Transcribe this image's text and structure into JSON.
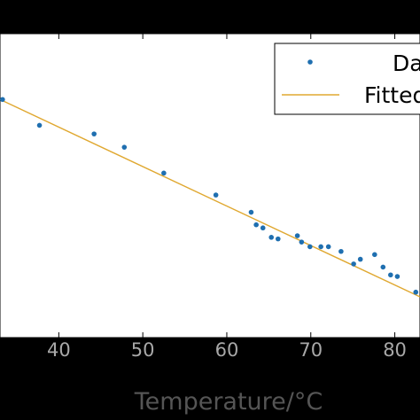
{
  "chart_data": {
    "type": "scatter",
    "title": "",
    "xlabel": "Temperature/°C",
    "ylabel": "",
    "xlim": [
      33,
      83
    ],
    "x_ticks": [
      40,
      50,
      60,
      70,
      80
    ],
    "grid": false,
    "legend": {
      "placement": "top-right",
      "entries": [
        {
          "label": "Da",
          "marker": "dot",
          "color": "#1f6fb0"
        },
        {
          "label": "Fitted",
          "marker": "line",
          "color": "#e0a830"
        }
      ]
    },
    "series": [
      {
        "kind": "points",
        "color": "#1f6fb0",
        "x": [
          33.3,
          37.7,
          44.2,
          47.8,
          52.5,
          58.7,
          62.9,
          63.5,
          64.3,
          65.3,
          66.1,
          68.4,
          68.9,
          69.9,
          71.2,
          72.1,
          73.6,
          75.1,
          75.9,
          77.6,
          78.6,
          79.5,
          80.3,
          82.5
        ],
        "y": [
          0.2,
          -1.45,
          -2.0,
          -2.85,
          -4.5,
          -5.9,
          -7.0,
          -7.8,
          -8.0,
          -8.6,
          -8.7,
          -8.5,
          -8.9,
          -9.2,
          -9.2,
          -9.2,
          -9.5,
          -10.3,
          -10.0,
          -9.7,
          -10.5,
          -11.0,
          -11.1,
          -12.1
        ],
        "ylim": [
          -15,
          4.4
        ]
      },
      {
        "kind": "fit-line",
        "color": "#e0a830",
        "x": [
          33,
          83
        ],
        "y": [
          0.2,
          -12.4
        ]
      }
    ]
  }
}
